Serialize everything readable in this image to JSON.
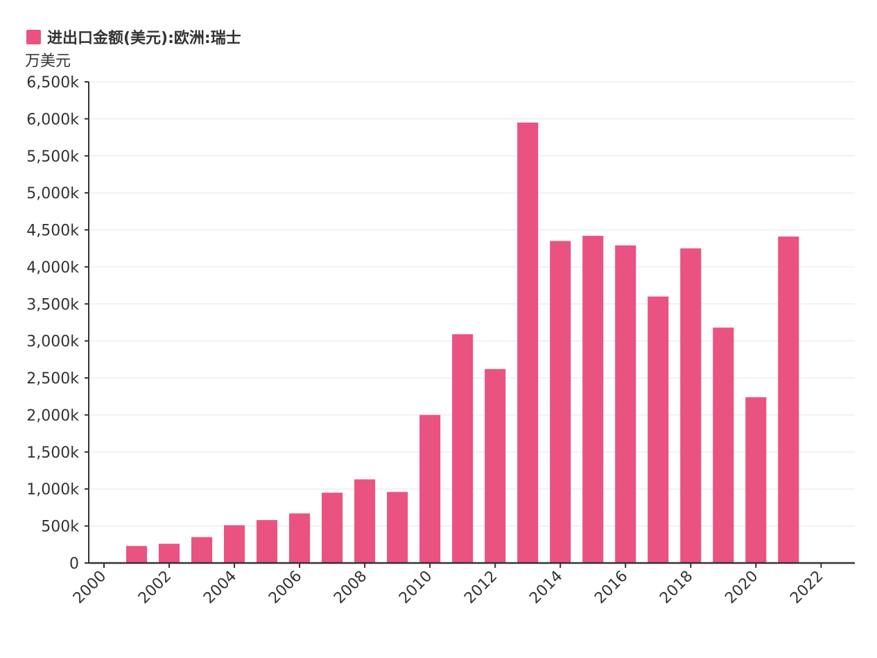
{
  "chart_data": {
    "type": "bar",
    "legend": [
      {
        "name": "进出口金额(美元):欧洲:瑞士",
        "color": "#ea5281"
      }
    ],
    "yunit": "万美元",
    "ylim": [
      0,
      6500000
    ],
    "yticks": [
      0,
      500000,
      1000000,
      1500000,
      2000000,
      2500000,
      3000000,
      3500000,
      4000000,
      4500000,
      5000000,
      5500000,
      6000000,
      6500000
    ],
    "ytick_labels": [
      "0",
      "500k",
      "1,000k",
      "1,500k",
      "2,000k",
      "2,500k",
      "3,000k",
      "3,500k",
      "4,000k",
      "4,500k",
      "5,000k",
      "5,500k",
      "6,000k",
      "6,500k"
    ],
    "xlim": [
      2000,
      2023
    ],
    "xticks": [
      2000,
      2002,
      2004,
      2006,
      2008,
      2010,
      2012,
      2014,
      2016,
      2018,
      2020,
      2022
    ],
    "xtick_labels": [
      "2000",
      "2002",
      "2004",
      "2006",
      "2008",
      "2010",
      "2012",
      "2014",
      "2016",
      "2018",
      "2020",
      "2022"
    ],
    "categories": [
      2001,
      2002,
      2003,
      2004,
      2005,
      2006,
      2007,
      2008,
      2009,
      2010,
      2011,
      2012,
      2013,
      2014,
      2015,
      2016,
      2017,
      2018,
      2019,
      2020,
      2021
    ],
    "values": [
      230000,
      260000,
      350000,
      510000,
      580000,
      670000,
      950000,
      1130000,
      960000,
      2000000,
      3090000,
      2620000,
      5950000,
      4350000,
      4420000,
      4290000,
      3600000,
      4250000,
      3180000,
      2240000,
      4410000
    ],
    "grid": true
  }
}
